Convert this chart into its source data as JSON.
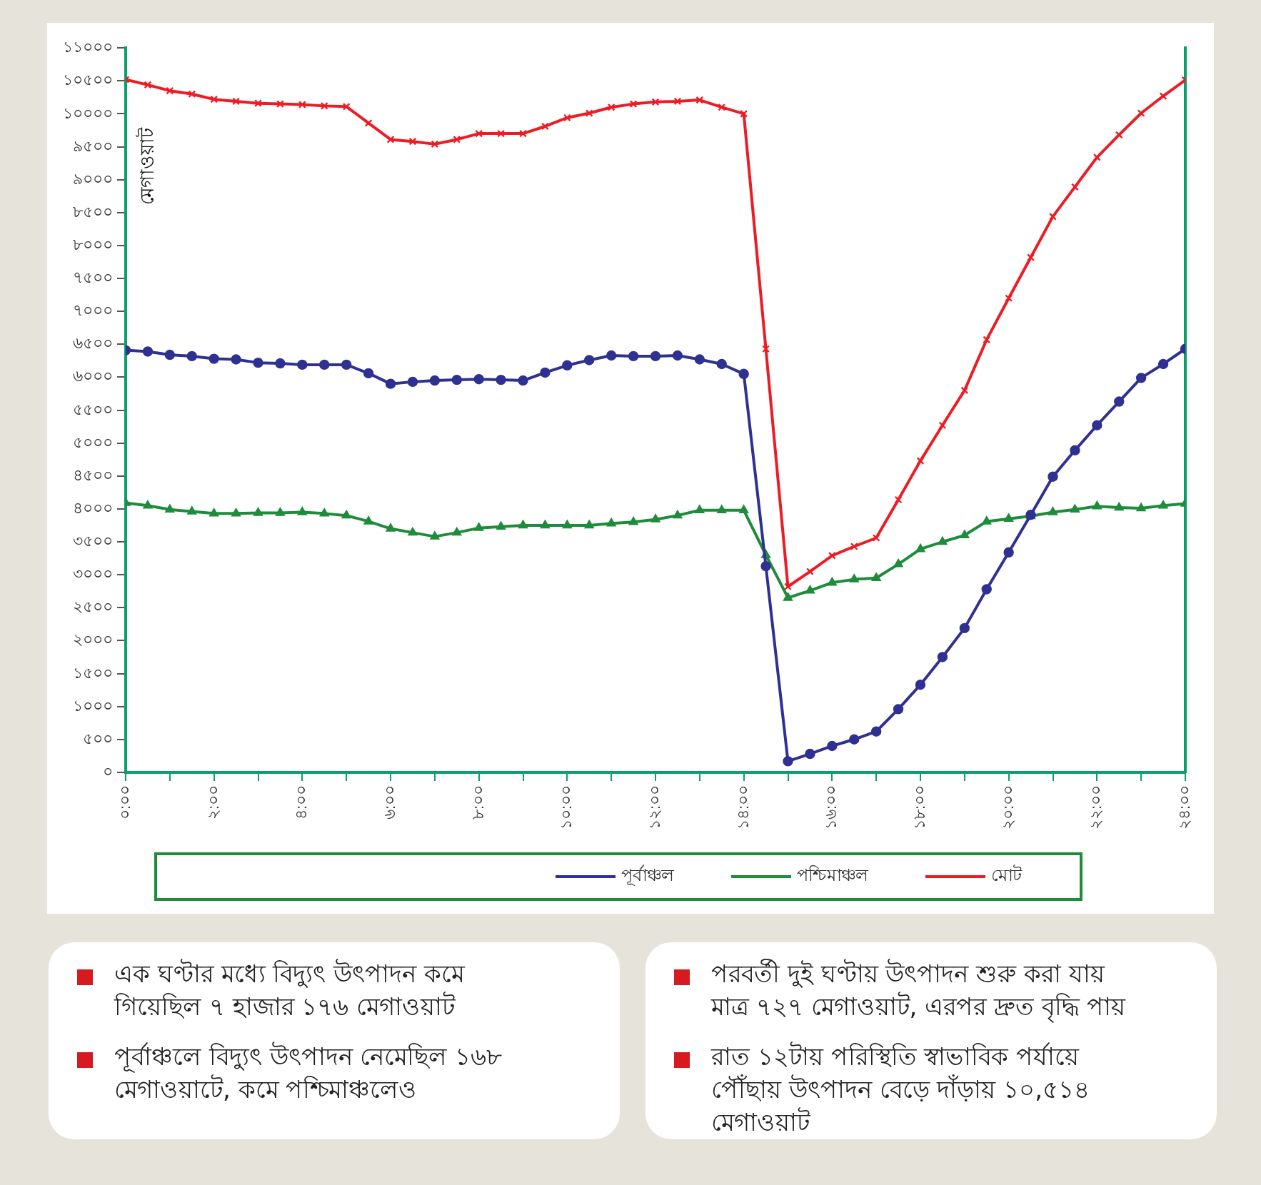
{
  "chart_data": {
    "type": "line",
    "ylabel": "মেগাওয়াট",
    "x": [
      0,
      0.5,
      1,
      1.5,
      2,
      2.5,
      3,
      3.5,
      4,
      4.5,
      5,
      5.5,
      6,
      6.5,
      7,
      7.5,
      8,
      8.5,
      9,
      9.5,
      10,
      10.5,
      11,
      11.5,
      12,
      12.5,
      13,
      13.5,
      14,
      14.5,
      15,
      15.5,
      16,
      16.5,
      17,
      17.5,
      18,
      18.5,
      19,
      19.5,
      20,
      20.5,
      21,
      21.5,
      22,
      22.5,
      23,
      23.5,
      24
    ],
    "series": [
      {
        "name": "পূর্বাঞ্চল",
        "color": "#2e3192",
        "marker": "circle",
        "values": [
          6410,
          6390,
          6340,
          6320,
          6280,
          6270,
          6220,
          6210,
          6190,
          6190,
          6190,
          6060,
          5900,
          5930,
          5950,
          5960,
          5970,
          5960,
          5950,
          6070,
          6180,
          6260,
          6330,
          6320,
          6320,
          6330,
          6270,
          6200,
          6050,
          3130,
          168,
          280,
          400,
          500,
          620,
          960,
          1330,
          1750,
          2190,
          2780,
          3340,
          3910,
          4490,
          4890,
          5270,
          5630,
          5990,
          6200,
          6430
        ]
      },
      {
        "name": "পশ্চিমাঞ্চল",
        "color": "#1e8c3a",
        "marker": "triangle",
        "values": [
          4090,
          4050,
          3990,
          3960,
          3930,
          3930,
          3940,
          3940,
          3950,
          3930,
          3900,
          3810,
          3700,
          3640,
          3580,
          3640,
          3710,
          3730,
          3750,
          3750,
          3750,
          3750,
          3780,
          3800,
          3840,
          3900,
          3980,
          3980,
          3980,
          3300,
          2650,
          2760,
          2880,
          2930,
          2950,
          3160,
          3390,
          3500,
          3600,
          3810,
          3850,
          3890,
          3950,
          3990,
          4040,
          4020,
          4010,
          4050,
          4080
        ]
      },
      {
        "name": "মোট",
        "color": "#ed1c24",
        "marker": "cross",
        "values": [
          10520,
          10440,
          10350,
          10300,
          10220,
          10190,
          10160,
          10150,
          10140,
          10120,
          10110,
          9860,
          9610,
          9580,
          9540,
          9610,
          9700,
          9700,
          9700,
          9810,
          9940,
          10010,
          10100,
          10150,
          10180,
          10190,
          10210,
          10100,
          10000,
          6430,
          2820,
          3050,
          3290,
          3430,
          3560,
          4140,
          4730,
          5270,
          5800,
          6570,
          7200,
          7820,
          8440,
          8890,
          9340,
          9680,
          10010,
          10270,
          10514
        ]
      }
    ],
    "xlim": [
      0,
      24
    ],
    "xticks": [
      {
        "value": 0,
        "label": "০:০০"
      },
      {
        "value": 1,
        "label": null
      },
      {
        "value": 2,
        "label": "২:০০"
      },
      {
        "value": 3,
        "label": null
      },
      {
        "value": 4,
        "label": "৪:০০"
      },
      {
        "value": 5,
        "label": null
      },
      {
        "value": 6,
        "label": "৬:০০"
      },
      {
        "value": 7,
        "label": null
      },
      {
        "value": 8,
        "label": "৮:০০"
      },
      {
        "value": 9,
        "label": null
      },
      {
        "value": 10,
        "label": "১০:০০"
      },
      {
        "value": 11,
        "label": null
      },
      {
        "value": 12,
        "label": "১২:০০"
      },
      {
        "value": 13,
        "label": null
      },
      {
        "value": 14,
        "label": "১৪:০০"
      },
      {
        "value": 15,
        "label": null
      },
      {
        "value": 16,
        "label": "১৬:০০"
      },
      {
        "value": 17,
        "label": null
      },
      {
        "value": 18,
        "label": "১৮:০০"
      },
      {
        "value": 19,
        "label": null
      },
      {
        "value": 20,
        "label": "২০:০০"
      },
      {
        "value": 21,
        "label": null
      },
      {
        "value": 22,
        "label": "২২:০০"
      },
      {
        "value": 23,
        "label": null
      },
      {
        "value": 24,
        "label": "২৪:০০"
      }
    ],
    "ylim": [
      0,
      11000
    ],
    "yticks": [
      {
        "value": 0,
        "label": "০"
      },
      {
        "value": 500,
        "label": "৫০০"
      },
      {
        "value": 1000,
        "label": "১০০০"
      },
      {
        "value": 1500,
        "label": "১৫০০"
      },
      {
        "value": 2000,
        "label": "২০০০"
      },
      {
        "value": 2500,
        "label": "২৫০০"
      },
      {
        "value": 3000,
        "label": "৩০০০"
      },
      {
        "value": 3500,
        "label": "৩৫০০"
      },
      {
        "value": 4000,
        "label": "৪০০০"
      },
      {
        "value": 4500,
        "label": "৪৫০০"
      },
      {
        "value": 5000,
        "label": "৫০০০"
      },
      {
        "value": 5500,
        "label": "৫৫০০"
      },
      {
        "value": 6000,
        "label": "৬০০০"
      },
      {
        "value": 6500,
        "label": "৬৫০০"
      },
      {
        "value": 7000,
        "label": "৭০০০"
      },
      {
        "value": 7500,
        "label": "৭৫০০"
      },
      {
        "value": 8000,
        "label": "৮০০০"
      },
      {
        "value": 8500,
        "label": "৮৫০০"
      },
      {
        "value": 9000,
        "label": "৯০০০"
      },
      {
        "value": 9500,
        "label": "৯৫০০"
      },
      {
        "value": 10000,
        "label": "১০০০০"
      },
      {
        "value": 10500,
        "label": "১০৫০০"
      },
      {
        "value": 11000,
        "label": "১১০০০"
      }
    ],
    "grid": false,
    "legend": "bottom",
    "line_style": "solid",
    "annotations": [
      "এক ঘণ্টার মধ্যে বিদ্যুৎ উৎপাদন কমে গিয়েছিল ৭ হাজার ১৭৬ মেগাওয়াট",
      "পূর্বাঞ্চলে বিদ্যুৎ উৎপাদন নেমেছিল ১৬৮ মেগাওয়াটে, কমে পশ্চিমাঞ্চলেও",
      "পরবর্তী দুই ঘণ্টায় উৎপাদন শুরু করা যায় মাত্র ৭২৭ মেগাওয়াট, এরপর দ্রুত বৃদ্ধি পায়",
      "রাত ১২টায় পরিস্থিতি স্বাভাবিক পর্যায়ে পৌঁছায় উৎপাদন বেড়ে দাঁড়ায় ১০,৫১৪ মেগাওয়াট"
    ]
  }
}
